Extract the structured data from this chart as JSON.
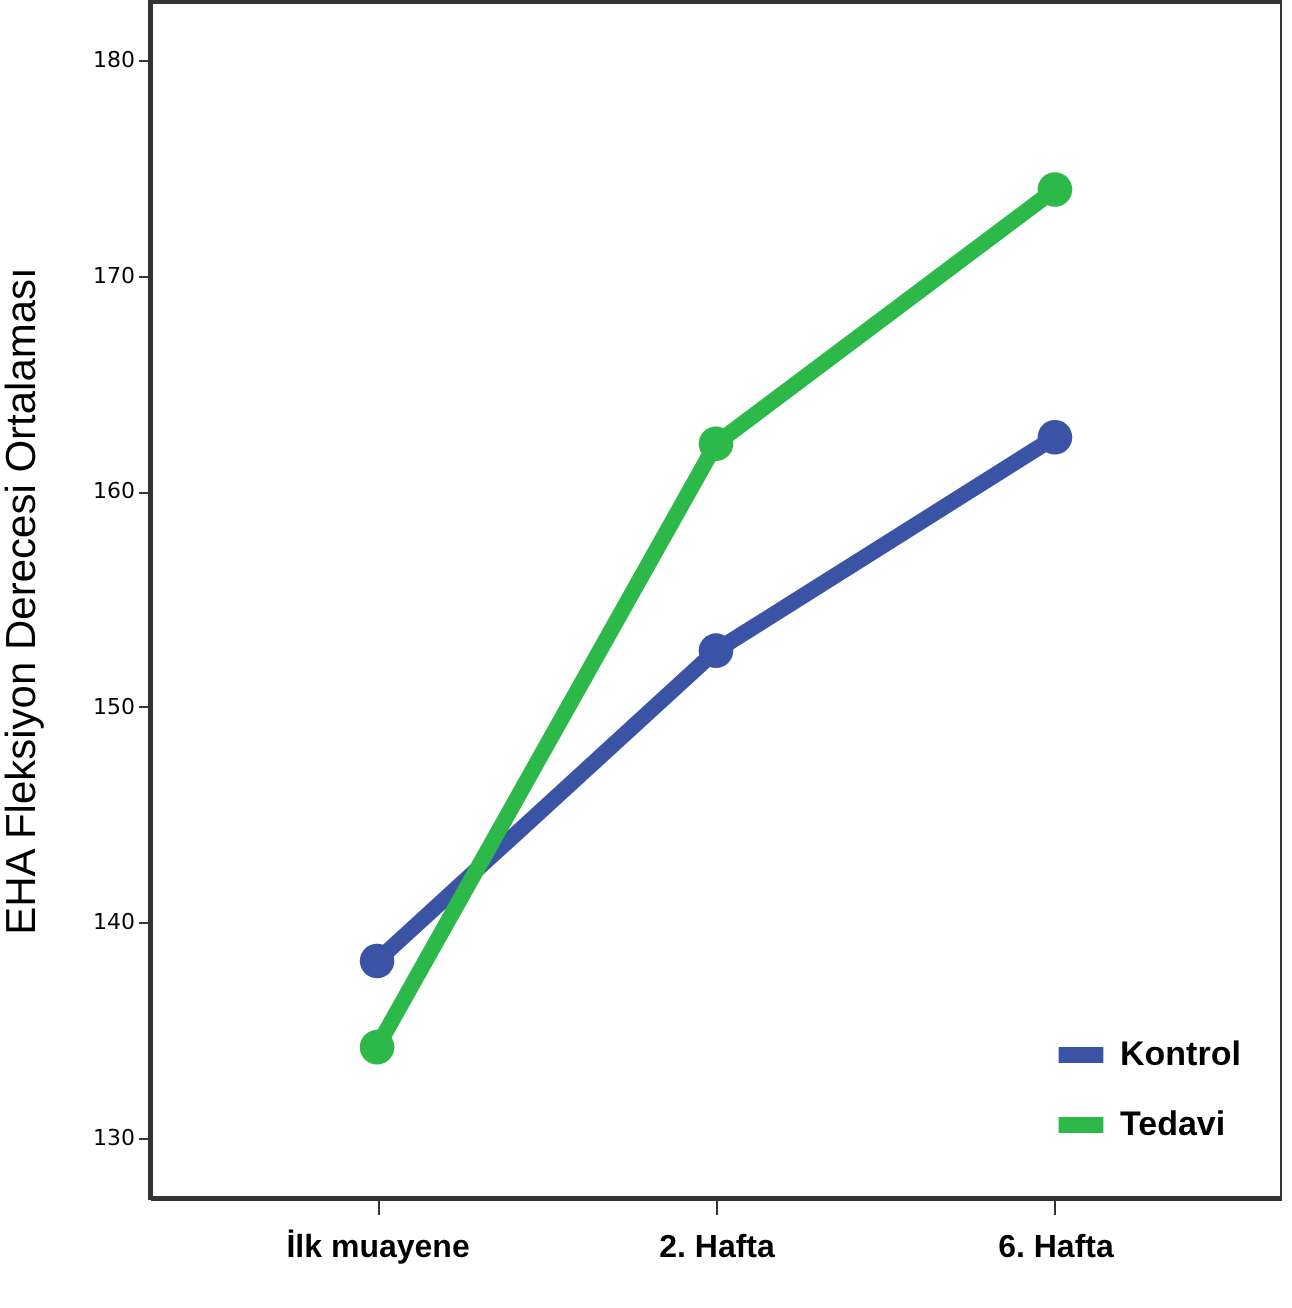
{
  "chart_data": {
    "type": "line",
    "ylabel": "EHA Fleksiyon Derecesi Ortalaması",
    "categories": [
      "İlk muayene",
      "2. Hafta",
      "6. Hafta"
    ],
    "series": [
      {
        "name": "Kontrol",
        "color": "#3a53a4",
        "values": [
          138.2,
          152.6,
          162.5
        ]
      },
      {
        "name": "Tedavi",
        "color": "#2db84a",
        "values": [
          134.2,
          162.2,
          174.0
        ]
      }
    ],
    "ylim": [
      127.2,
      182.7
    ],
    "yticks": [
      130,
      140,
      150,
      160,
      170,
      180
    ],
    "grid": false,
    "legend": "bottom right",
    "marker": "circle",
    "line_style": "solid"
  }
}
